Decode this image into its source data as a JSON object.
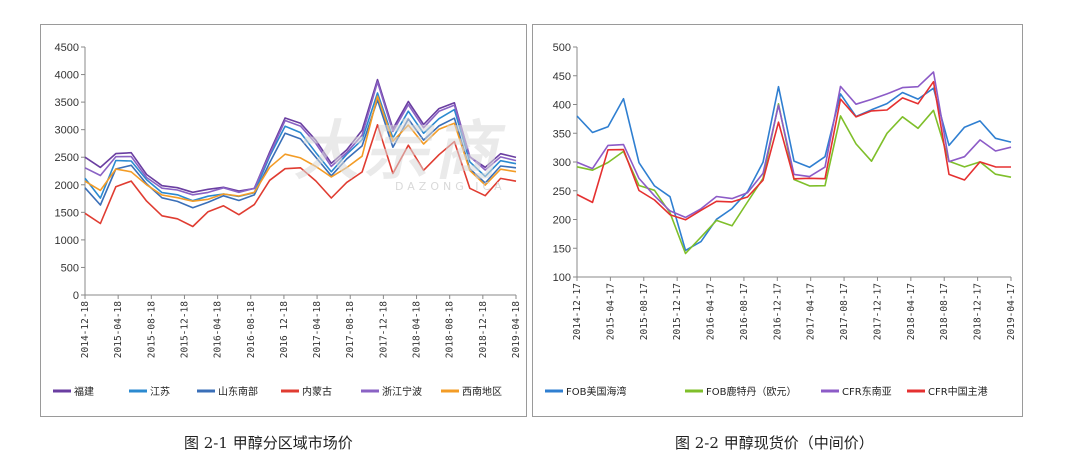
{
  "captions": {
    "left": "图 2-1 甲醇分区域市场价",
    "right": "图 2-2   甲醇现货价（中间价）"
  },
  "watermark": {
    "main": "大宗商",
    "sub": "DAZONG ICA"
  },
  "chart_data": [
    {
      "type": "line",
      "title": "",
      "ylim": [
        0,
        4500
      ],
      "yticks": [
        0,
        500,
        1000,
        1500,
        2000,
        2500,
        3000,
        3500,
        4000,
        4500
      ],
      "x_ticks": [
        "2014-12-18",
        "2015-04-18",
        "2015-08-18",
        "2015-12-18",
        "2016-04-18",
        "2016-08-18",
        "2016-12-18",
        "2017-04-18",
        "2017-08-18",
        "2017-12-18",
        "2018-04-18",
        "2018-08-18",
        "2018-12-18",
        "2019-04-18"
      ],
      "x_ticks_display": [
        "2014-12-18",
        "2015-04-18",
        "2015-08-18",
        "2015-12-18",
        "2016-04-18",
        "2016-08-18",
        "2016 12-18",
        "2017-04-18",
        "2017-08-18",
        "2017-12-18",
        "2018-04-18",
        "2018-08-18",
        "2018-12-18",
        "2019-04-18"
      ],
      "legend_position": "bottom",
      "series": [
        {
          "name": "福建",
          "color": "#6a3ea1",
          "values": [
            2500,
            2300,
            2550,
            2580,
            2200,
            2000,
            1950,
            1850,
            1900,
            1950,
            1900,
            1950,
            2600,
            3200,
            3100,
            2800,
            2400,
            2650,
            3000,
            3900,
            3000,
            3500,
            3100,
            3400,
            3500,
            2500,
            2300,
            2550,
            2500
          ]
        },
        {
          "name": "江苏",
          "color": "#2b8ad0",
          "values": [
            2100,
            1750,
            2450,
            2450,
            2100,
            1850,
            1800,
            1700,
            1800,
            1850,
            1800,
            1850,
            2500,
            3050,
            2950,
            2600,
            2250,
            2550,
            2800,
            3650,
            2850,
            3350,
            2950,
            3200,
            3350,
            2400,
            2150,
            2450,
            2400
          ]
        },
        {
          "name": "山东南部",
          "color": "#3a6fb8",
          "values": [
            1950,
            1650,
            2300,
            2350,
            2000,
            1750,
            1700,
            1600,
            1700,
            1800,
            1700,
            1800,
            2400,
            2950,
            2850,
            2500,
            2150,
            2450,
            2700,
            3550,
            2700,
            3200,
            2800,
            3050,
            3200,
            2300,
            2050,
            2350,
            2300
          ]
        },
        {
          "name": "内蒙古",
          "color": "#e03c31",
          "values": [
            1500,
            1300,
            1950,
            2050,
            1700,
            1450,
            1400,
            1250,
            1500,
            1600,
            1450,
            1650,
            2100,
            2300,
            2300,
            2050,
            1750,
            2050,
            2250,
            3100,
            2200,
            2700,
            2250,
            2550,
            2800,
            1950,
            1800,
            2100,
            2050
          ]
        },
        {
          "name": "浙江宁波",
          "color": "#8a62c4",
          "values": [
            2300,
            2150,
            2500,
            2520,
            2150,
            1950,
            1900,
            1800,
            1850,
            1950,
            1880,
            1950,
            2550,
            3150,
            3050,
            2750,
            2350,
            2600,
            2900,
            3850,
            2950,
            3450,
            3050,
            3350,
            3450,
            2500,
            2250,
            2500,
            2450
          ]
        },
        {
          "name": "西南地区",
          "color": "#f39c26",
          "values": [
            2050,
            1900,
            2300,
            2250,
            2000,
            1800,
            1750,
            1700,
            1750,
            1850,
            1800,
            1850,
            2300,
            2550,
            2500,
            2350,
            2150,
            2300,
            2500,
            3600,
            2800,
            3100,
            2750,
            3000,
            3100,
            2250,
            2000,
            2300,
            2250
          ]
        }
      ]
    },
    {
      "type": "line",
      "title": "",
      "ylim": [
        100,
        500
      ],
      "yticks": [
        100,
        150,
        200,
        250,
        300,
        350,
        400,
        450,
        500
      ],
      "x_ticks": [
        "2014-12-17",
        "2015-04-17",
        "2015-08-17",
        "2015-12-17",
        "2016-04-17",
        "2016-08-17",
        "2016-12-17",
        "2017-04-17",
        "2017-08-17",
        "2017-12-17",
        "2018-04-17",
        "2018-08-17",
        "2018-12-17",
        "2019-04-17"
      ],
      "legend_position": "bottom",
      "series": [
        {
          "name": "FOB美国海湾",
          "color": "#2f7fd1",
          "values": [
            380,
            350,
            360,
            410,
            300,
            260,
            240,
            145,
            160,
            200,
            220,
            250,
            300,
            430,
            300,
            290,
            310,
            420,
            380,
            390,
            400,
            420,
            410,
            430,
            330,
            360,
            370,
            340,
            335
          ]
        },
        {
          "name": "FOB鹿特丹（欧元）",
          "color": "#7fbf2a",
          "values": [
            290,
            285,
            300,
            320,
            260,
            250,
            210,
            140,
            170,
            200,
            190,
            230,
            270,
            400,
            270,
            260,
            260,
            380,
            330,
            300,
            350,
            380,
            360,
            390,
            300,
            290,
            300,
            280,
            275
          ]
        },
        {
          "name": "CFR东南亚",
          "color": "#8c5bc7",
          "values": [
            300,
            290,
            330,
            330,
            270,
            240,
            215,
            205,
            220,
            240,
            235,
            245,
            280,
            400,
            280,
            275,
            290,
            430,
            400,
            410,
            420,
            430,
            430,
            455,
            300,
            310,
            340,
            320,
            325
          ]
        },
        {
          "name": "CFR中国主港",
          "color": "#e53030",
          "values": [
            245,
            230,
            320,
            320,
            250,
            235,
            210,
            200,
            215,
            230,
            230,
            240,
            270,
            370,
            270,
            270,
            270,
            410,
            380,
            390,
            390,
            410,
            400,
            440,
            280,
            270,
            300,
            290,
            290
          ]
        }
      ]
    }
  ]
}
